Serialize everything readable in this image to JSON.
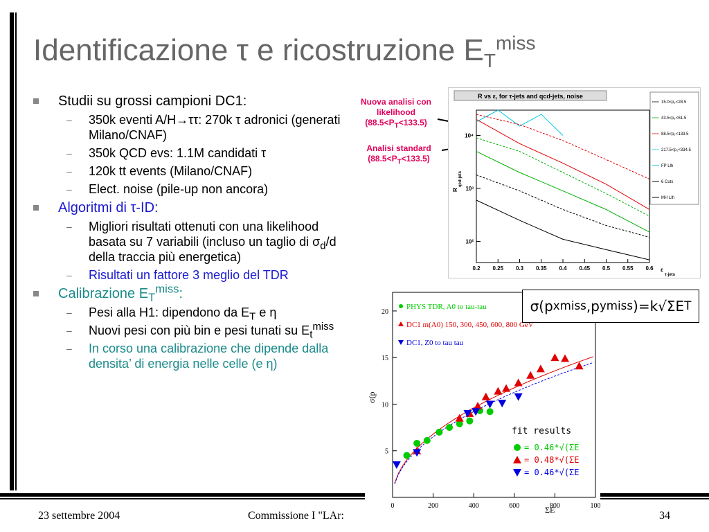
{
  "title": {
    "main": "Identificazione τ e ricostruzione E",
    "sub": "T",
    "sup": "miss"
  },
  "bullets": [
    {
      "text": "Studii su grossi campioni DC1:",
      "children": [
        "350k eventi A/H→ττ: 270k τ adronici (generati Milano/CNAF)",
        "350k QCD evs: 1.1M candidati τ",
        "120k tt events (Milano/CNAF)",
        "Elect. noise (pile-up non ancora)"
      ]
    },
    {
      "text": "Algoritmi di τ-ID:",
      "children": [
        "Migliori risultati ottenuti con una likelihood basata su 7 variabili (incluso un taglio di σ",
        "Risultati un fattore 3 meglio del TDR"
      ]
    },
    {
      "text": "Calibrazione E",
      "children": [
        "Pesi alla H1: dipendono da E",
        "Nuovi pesi con più bin e pesi tunati su E",
        "In corso una calibrazione che dipende dalla densita’ di energia nelle celle (e η)"
      ]
    }
  ],
  "bullet_parts": {
    "b2_child0_tail1": "d",
    "b2_child0_tail2": "/d della traccia più energetica)",
    "b3_sub": "T",
    "b3_sup": "miss",
    "b3_tail": ":",
    "b3_child0_sub": "T",
    "b3_child0_tail": " e η",
    "b3_child1_sub": "t",
    "b3_child1_sup": "miss"
  },
  "annotations": {
    "nuova": "Nuova analisi con likelihood (88.5<P",
    "nuova_sub": "T",
    "nuova_tail": "<133.5)",
    "standard": "Analisi standard (88.5<P",
    "standard_sub": "T",
    "standard_tail": "<133.5)"
  },
  "formula": {
    "text1": "σ(p",
    "x": "x",
    "miss1": "miss",
    "text2": ",p",
    "y": "y",
    "miss2": "miss",
    "text3": ")=k√ΣE",
    "T": "T"
  },
  "footer": {
    "date": "23 settembre 2004",
    "center": "Commissione I \"LAr:",
    "page": "34"
  },
  "chart_data": [
    {
      "type": "line",
      "title": "R vs ε, for τ-jets and qcd-jets, noise",
      "ylabel": "R",
      "ylabel_sub": "qcd-jets",
      "xlabel": "ε",
      "xlabel_sub": "τ-jets",
      "log_y": true,
      "xlim": [
        0.2,
        0.6
      ],
      "ylim": [
        40,
        30000
      ],
      "x_ticks": [
        "0.2",
        "0.25",
        "0.3",
        "0.35",
        "0.4",
        "0.45",
        "0.5",
        "0.55",
        "0.6"
      ],
      "y_ticks": [
        "10²",
        "10³",
        "10⁴"
      ],
      "legend": [
        "15.0<p",
        "43.5<p",
        "88.5<p",
        "217.5<p",
        "FP Llh",
        "6 Cuts",
        "MH Llh"
      ],
      "legend_sub": "T",
      "legend_tail": [
        "<28.5",
        "<61.5",
        "<133.5",
        "<334.5",
        "",
        "",
        ""
      ],
      "colors": {
        "black": "#000000",
        "green": "#00b000",
        "red": "#e00000",
        "cyan": "#00c8e0"
      },
      "series": [
        {
          "color": "#00c8e0",
          "style": "solid",
          "x": [
            0.2,
            0.25,
            0.3,
            0.35,
            0.4
          ],
          "y": [
            18000,
            30000,
            15000,
            25000,
            10000
          ]
        },
        {
          "color": "#e00000",
          "style": "solid",
          "x": [
            0.2,
            0.3,
            0.4,
            0.5,
            0.6
          ],
          "y": [
            20000,
            7000,
            3000,
            1200,
            400
          ]
        },
        {
          "color": "#e00000",
          "style": "dashed",
          "x": [
            0.2,
            0.3,
            0.4,
            0.5,
            0.6
          ],
          "y": [
            25000,
            16000,
            8000,
            3500,
            1500
          ]
        },
        {
          "color": "#00b000",
          "style": "solid",
          "x": [
            0.2,
            0.3,
            0.4,
            0.5,
            0.6
          ],
          "y": [
            5000,
            2000,
            900,
            400,
            150
          ]
        },
        {
          "color": "#00b000",
          "style": "dashed",
          "x": [
            0.2,
            0.3,
            0.4,
            0.5,
            0.6
          ],
          "y": [
            9000,
            5000,
            2000,
            800,
            300
          ]
        },
        {
          "color": "#000000",
          "style": "solid",
          "x": [
            0.2,
            0.3,
            0.4,
            0.5,
            0.6
          ],
          "y": [
            600,
            250,
            110,
            70,
            45
          ]
        },
        {
          "color": "#000000",
          "style": "dashed",
          "x": [
            0.2,
            0.3,
            0.4,
            0.5,
            0.6
          ],
          "y": [
            1800,
            900,
            400,
            200,
            120
          ]
        }
      ]
    },
    {
      "type": "scatter",
      "ylabel": "σ(p",
      "xlabel": "ΣE",
      "xlim": [
        0,
        1000
      ],
      "ylim": [
        0,
        22
      ],
      "x_ticks": [
        "0",
        "200",
        "400",
        "600",
        "800",
        "100"
      ],
      "y_ticks": [
        "5",
        "10",
        "15",
        "20"
      ],
      "legend": [
        "PHYS TDR, A0 to tau-tau",
        "DC1 m(A0) 150, 300, 450, 600, 800 GeV",
        "DC1, Z0 to tau tau"
      ],
      "fit_title": "fit results",
      "fit_results": [
        "= 0.46*√(ΣE",
        "= 0.48*√(ΣE",
        "= 0.46*√(ΣE"
      ],
      "series": [
        {
          "name": "PHYS TDR, A0 to tau-tau",
          "color": "#00cc00",
          "marker": "circle",
          "x": [
            70,
            120,
            170,
            230,
            280,
            330,
            380,
            430,
            480
          ],
          "y": [
            4.5,
            5.8,
            6.1,
            7.0,
            7.5,
            7.9,
            8.2,
            9.3,
            9.2
          ]
        },
        {
          "name": "DC1 m(A0) 150, 300, 450, 600, 800 GeV",
          "color": "#e00000",
          "marker": "triangle-up",
          "x": [
            120,
            330,
            380,
            420,
            460,
            520,
            560,
            620,
            680,
            730,
            800,
            850,
            920
          ],
          "y": [
            5.0,
            8.5,
            9.0,
            9.8,
            10.8,
            11.4,
            11.7,
            12.3,
            13.1,
            13.8,
            15.0,
            14.9,
            14.1
          ]
        },
        {
          "name": "DC1, Z0 to tau tau",
          "color": "#0000e0",
          "marker": "triangle-down",
          "x": [
            20,
            120,
            370,
            410,
            480,
            540,
            620
          ],
          "y": [
            3.5,
            4.8,
            9.0,
            9.2,
            10.0,
            10.1,
            10.8
          ]
        }
      ]
    }
  ]
}
